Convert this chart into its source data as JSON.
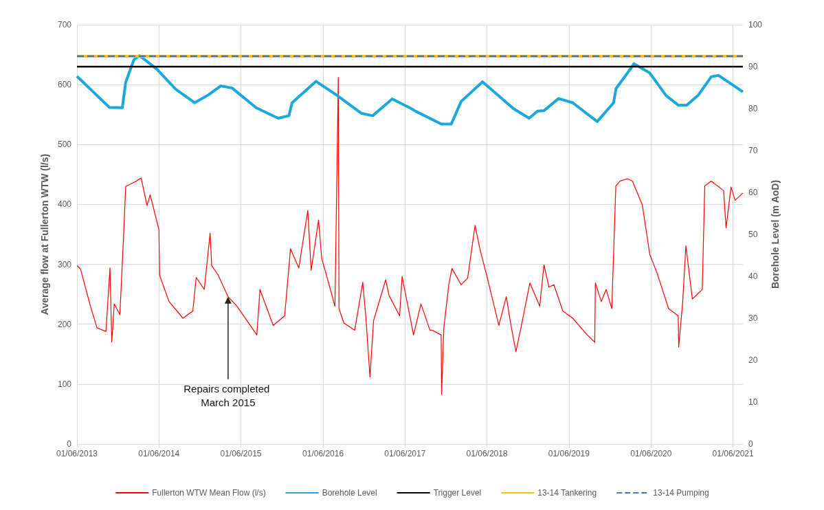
{
  "chart_data": {
    "type": "line",
    "ylabel": "Average flow at Fullerton WTW (l/s)",
    "y2label": "Borehole Level (m AoD)",
    "xlim": [
      "2013-06-01",
      "2021-07-15"
    ],
    "xticks": [
      {
        "value": "2013-06-01",
        "label": "01/06/2013"
      },
      {
        "value": "2014-06-01",
        "label": "01/06/2014"
      },
      {
        "value": "2015-06-01",
        "label": "01/06/2015"
      },
      {
        "value": "2016-06-01",
        "label": "01/06/2016"
      },
      {
        "value": "2017-06-01",
        "label": "01/06/2017"
      },
      {
        "value": "2018-06-01",
        "label": "01/06/2018"
      },
      {
        "value": "2019-06-01",
        "label": "01/06/2019"
      },
      {
        "value": "2020-06-01",
        "label": "01/06/2020"
      },
      {
        "value": "2021-06-01",
        "label": "01/06/2021"
      }
    ],
    "ylim": [
      0,
      700
    ],
    "yticks": [
      0,
      100,
      200,
      300,
      400,
      500,
      600,
      700
    ],
    "y2lim": [
      0,
      100
    ],
    "y2ticks": [
      0,
      10,
      20,
      30,
      40,
      50,
      60,
      70,
      80,
      90,
      100
    ],
    "grid": true,
    "legend": "bottom",
    "marker": "none",
    "annotations": [
      {
        "text": "Repairs completed March 2015",
        "x": "2015-04-05",
        "y": 246
      }
    ],
    "series": [
      {
        "name": "Fullerton WTW Mean Flow (l/s)",
        "color": "#ff0000",
        "line_style": "solid",
        "x": [
          "2013-06-01",
          "2013-06-17",
          "2013-07-31",
          "2013-08-29",
          "2013-10-08",
          "2013-10-26",
          "2013-11-03",
          "2013-11-14",
          "2013-12-09",
          "2013-12-24",
          "2014-01-04",
          "2014-02-16",
          "2014-03-14",
          "2014-04-09",
          "2014-04-23",
          "2014-06-01",
          "2014-06-04",
          "2014-07-16",
          "2014-09-16",
          "2014-10-30",
          "2014-11-14",
          "2014-12-20",
          "2015-01-15",
          "2015-01-22",
          "2015-02-20",
          "2015-04-05",
          "2015-05-15",
          "2015-08-11",
          "2015-08-25",
          "2015-10-23",
          "2015-12-13",
          "2016-01-08",
          "2016-02-14",
          "2016-03-25",
          "2016-04-09",
          "2016-05-12",
          "2016-05-26",
          "2016-06-25",
          "2016-07-24",
          "2016-08-08",
          "2016-08-11",
          "2016-09-02",
          "2016-10-20",
          "2016-11-25",
          "2016-12-09",
          "2016-12-27",
          "2017-01-12",
          "2017-03-07",
          "2017-03-22",
          "2017-05-08",
          "2017-05-19",
          "2017-07-09",
          "2017-08-11",
          "2017-09-20",
          "2017-10-01",
          "2017-11-09",
          "2017-11-11",
          "2017-11-21",
          "2017-12-13",
          "2017-12-27",
          "2018-02-06",
          "2018-03-07",
          "2018-04-09",
          "2018-05-01",
          "2018-06-03",
          "2018-07-24",
          "2018-08-26",
          "2018-09-16",
          "2018-10-08",
          "2018-11-06",
          "2018-12-09",
          "2019-01-22",
          "2019-02-10",
          "2019-03-04",
          "2019-03-26",
          "2019-05-05",
          "2019-06-18",
          "2019-08-22",
          "2019-09-24",
          "2019-09-27",
          "2019-10-23",
          "2019-11-14",
          "2019-12-09",
          "2019-12-27",
          "2020-01-15",
          "2020-02-17",
          "2020-03-10",
          "2020-04-23",
          "2020-05-26",
          "2020-06-28",
          "2020-08-18",
          "2020-09-30",
          "2020-10-02",
          "2020-10-20",
          "2020-11-03",
          "2020-12-02",
          "2021-01-15",
          "2021-01-26",
          "2021-02-24",
          "2021-04-20",
          "2021-05-01",
          "2021-05-23",
          "2021-06-10",
          "2021-07-15"
        ],
        "values": [
          298,
          292,
          230,
          194,
          188,
          294,
          170,
          234,
          216,
          334,
          430,
          438,
          444,
          398,
          416,
          358,
          282,
          238,
          210,
          222,
          278,
          258,
          352,
          298,
          282,
          246,
          230,
          182,
          258,
          198,
          214,
          326,
          294,
          390,
          290,
          374,
          310,
          270,
          230,
          612,
          226,
          202,
          190,
          270,
          210,
          112,
          206,
          274,
          248,
          214,
          280,
          182,
          234,
          190,
          190,
          182,
          83,
          194,
          266,
          293,
          266,
          277,
          365,
          325,
          277,
          198,
          246,
          198,
          154,
          206,
          269,
          230,
          299,
          262,
          266,
          222,
          210,
          182,
          170,
          269,
          238,
          258,
          226,
          431,
          439,
          443,
          439,
          399,
          317,
          285,
          226,
          214,
          162,
          238,
          331,
          242,
          258,
          431,
          439,
          423,
          361,
          429,
          407,
          419
        ]
      },
      {
        "name": "Borehole Level",
        "color": "#1aa7dc",
        "axis": "y2",
        "line_style": "solid",
        "x": [
          "2013-06-01",
          "2013-10-23",
          "2013-12-20",
          "2014-01-04",
          "2014-02-10",
          "2014-03-07",
          "2014-05-23",
          "2014-08-15",
          "2014-11-07",
          "2015-01-08",
          "2015-03-03",
          "2015-04-23",
          "2015-08-08",
          "2015-11-14",
          "2016-01-01",
          "2016-01-15",
          "2016-05-01",
          "2016-08-04",
          "2016-11-18",
          "2017-01-08",
          "2017-04-05",
          "2017-06-29",
          "2017-07-17",
          "2017-11-10",
          "2017-12-24",
          "2018-02-06",
          "2018-03-29",
          "2018-05-12",
          "2018-09-27",
          "2018-12-06",
          "2019-01-12",
          "2019-02-10",
          "2019-04-16",
          "2019-06-18",
          "2019-10-05",
          "2019-12-17",
          "2019-12-28",
          "2020-02-17",
          "2020-03-17",
          "2020-05-26",
          "2020-08-07",
          "2020-10-01",
          "2020-11-07",
          "2020-12-28",
          "2021-02-24",
          "2021-03-29",
          "2021-07-15"
        ],
        "values": [
          87.7,
          80.3,
          80.2,
          86.3,
          91.7,
          92.6,
          89.4,
          84.6,
          81.4,
          83.3,
          85.4,
          84.9,
          80.2,
          77.7,
          78.3,
          81.4,
          86.5,
          83.1,
          78.9,
          78.3,
          82.3,
          80.0,
          79.4,
          76.3,
          76.3,
          81.7,
          84.2,
          86.4,
          80.0,
          77.7,
          79.4,
          79.5,
          82.4,
          81.4,
          76.9,
          81.4,
          84.8,
          88.5,
          90.7,
          88.5,
          83.1,
          80.8,
          80.8,
          83.2,
          87.6,
          87.9,
          84.0
        ]
      },
      {
        "name": "Trigger Level",
        "color": "#000000",
        "axis": "y2",
        "line_style": "solid",
        "x": [
          "2013-06-01",
          "2021-07-15"
        ],
        "values": [
          90,
          90
        ]
      },
      {
        "name": "13-14 Tankering",
        "color": "#ffc000",
        "axis": "y2",
        "line_style": "solid",
        "x": [
          "2013-06-01",
          "2021-07-15"
        ],
        "values": [
          92.5,
          92.5
        ]
      },
      {
        "name": "13-14 Pumping",
        "color": "#4472c4",
        "axis": "y2",
        "line_style": "dashed",
        "x": [
          "2013-06-01",
          "2021-07-15"
        ],
        "values": [
          92.5,
          92.5
        ]
      }
    ]
  }
}
